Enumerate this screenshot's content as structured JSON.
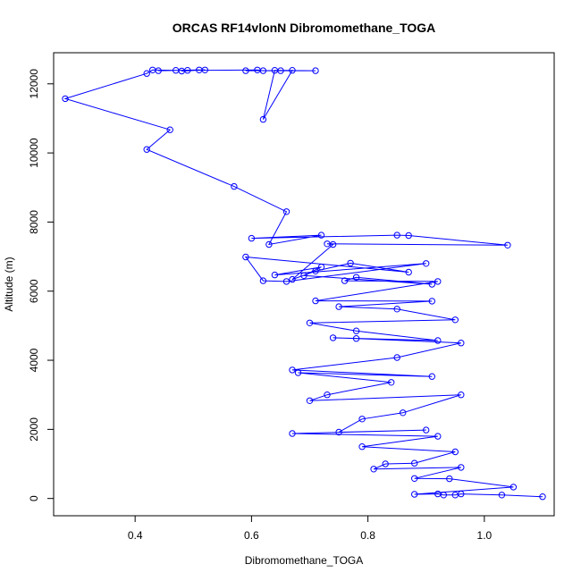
{
  "chart_data": {
    "type": "line",
    "title": "ORCAS RF14vlonN Dibromomethane_TOGA",
    "xlabel": "Dibromomethane_TOGA",
    "ylabel": "Altitude (m)",
    "xlim": [
      0.26,
      1.12
    ],
    "ylim": [
      -500,
      12900
    ],
    "xticks": [
      0.4,
      0.6,
      0.8,
      1.0
    ],
    "xtick_labels": [
      "0.4",
      "0.6",
      "0.8",
      "1.0"
    ],
    "yticks": [
      0,
      2000,
      4000,
      6000,
      8000,
      10000,
      12000
    ],
    "ytick_labels": [
      "0",
      "2000",
      "4000",
      "6000",
      "8000",
      "10000",
      "12000"
    ],
    "series": [
      {
        "name": "Dibromomethane_TOGA",
        "color": "#0000ff",
        "marker": "open-circle",
        "x": [
          1.1,
          1.03,
          0.96,
          0.95,
          0.93,
          0.92,
          0.88,
          1.05,
          0.94,
          0.88,
          0.96,
          0.81,
          0.83,
          0.88,
          0.95,
          0.79,
          0.92,
          0.67,
          0.9,
          0.75,
          0.79,
          0.86,
          0.96,
          0.7,
          0.73,
          0.84,
          0.68,
          0.91,
          0.67,
          0.85,
          0.96,
          0.78,
          0.74,
          0.92,
          0.78,
          0.7,
          0.95,
          0.85,
          0.75,
          0.91,
          0.71,
          0.92,
          0.76,
          0.78,
          0.91,
          0.69,
          0.72,
          0.64,
          0.9,
          0.66,
          0.62,
          0.59,
          0.87,
          0.77,
          0.71,
          0.67,
          0.74,
          0.73,
          1.04,
          0.87,
          0.85,
          0.6,
          0.72,
          0.63,
          0.66,
          0.57,
          0.42,
          0.46,
          0.28,
          0.42,
          0.43,
          0.47,
          0.51,
          0.44,
          0.52,
          0.48,
          0.49,
          0.61,
          0.62,
          0.65,
          0.71,
          0.64,
          0.62,
          0.67,
          0.59
        ],
        "y": [
          50,
          100,
          130,
          100,
          100,
          130,
          120,
          330,
          570,
          580,
          900,
          850,
          1000,
          1020,
          1350,
          1500,
          1800,
          1880,
          1980,
          1920,
          2300,
          2480,
          3000,
          2830,
          3000,
          3360,
          3640,
          3530,
          3720,
          4080,
          4500,
          4630,
          4650,
          4570,
          4850,
          5080,
          5170,
          5480,
          5550,
          5710,
          5720,
          6280,
          6300,
          6400,
          6200,
          6450,
          6700,
          6470,
          6800,
          6280,
          6300,
          6990,
          6550,
          6810,
          6580,
          6340,
          7350,
          7370,
          7330,
          7610,
          7620,
          7530,
          7620,
          7350,
          8300,
          9030,
          10100,
          10670,
          11570,
          12300,
          12400,
          12390,
          12400,
          12380,
          12400,
          12370,
          12390,
          12400,
          12380,
          12380,
          12380,
          12390,
          10970,
          12390,
          12380
        ]
      }
    ]
  }
}
